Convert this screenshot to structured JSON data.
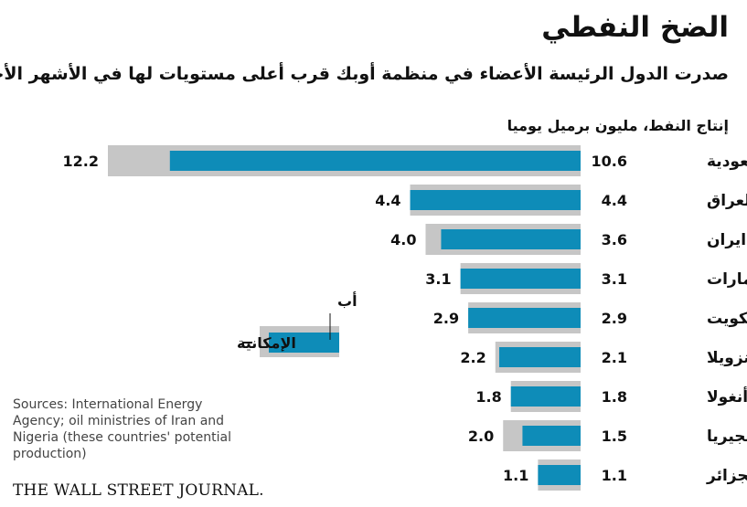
{
  "header": {
    "title": "الضخ النفطي",
    "subtitle": "صدرت الدول الرئيسة الأعضاء في منظمة أوبك قرب أعلى مستويات لها في الأشهر الأخيرة",
    "unit_label": "إنتاج النفط، مليون برميل يوميا"
  },
  "legend": {
    "current_label": "أب",
    "capacity_label": "الإمكانية"
  },
  "colors": {
    "production": "#0e8cb8",
    "capacity": "#c6c6c6"
  },
  "chart_data": {
    "type": "bar",
    "orientation": "horizontal",
    "title": "الضخ النفطي",
    "subtitle": "صدرت الدول الرئيسة الأعضاء في منظمة أوبك قرب أعلى مستويات لها في الأشهر الأخيرة",
    "xlabel": "إنتاج النفط، مليون برميل يوميا",
    "ylabel": "",
    "categories": [
      "السعودية",
      "العراق",
      "ايران",
      "الإمارات",
      "الكويت",
      "فنزويلا",
      "أنغولا",
      "نيجيريا",
      "الجزائر"
    ],
    "series": [
      {
        "name": "أب",
        "values": [
          10.6,
          4.4,
          3.6,
          3.1,
          2.9,
          2.1,
          1.8,
          1.5,
          1.1
        ]
      },
      {
        "name": "الإمكانية",
        "values": [
          12.2,
          4.4,
          4.0,
          3.1,
          2.9,
          2.2,
          1.8,
          2.0,
          1.1
        ]
      }
    ],
    "xlim": [
      0,
      12.2
    ],
    "grid": false,
    "legend_position": "left"
  },
  "footer": {
    "sources": "Sources: International Energy Agency; oil ministries of Iran and Nigeria (these countries' potential production)",
    "publisher": "THE WALL STREET JOURNAL."
  }
}
